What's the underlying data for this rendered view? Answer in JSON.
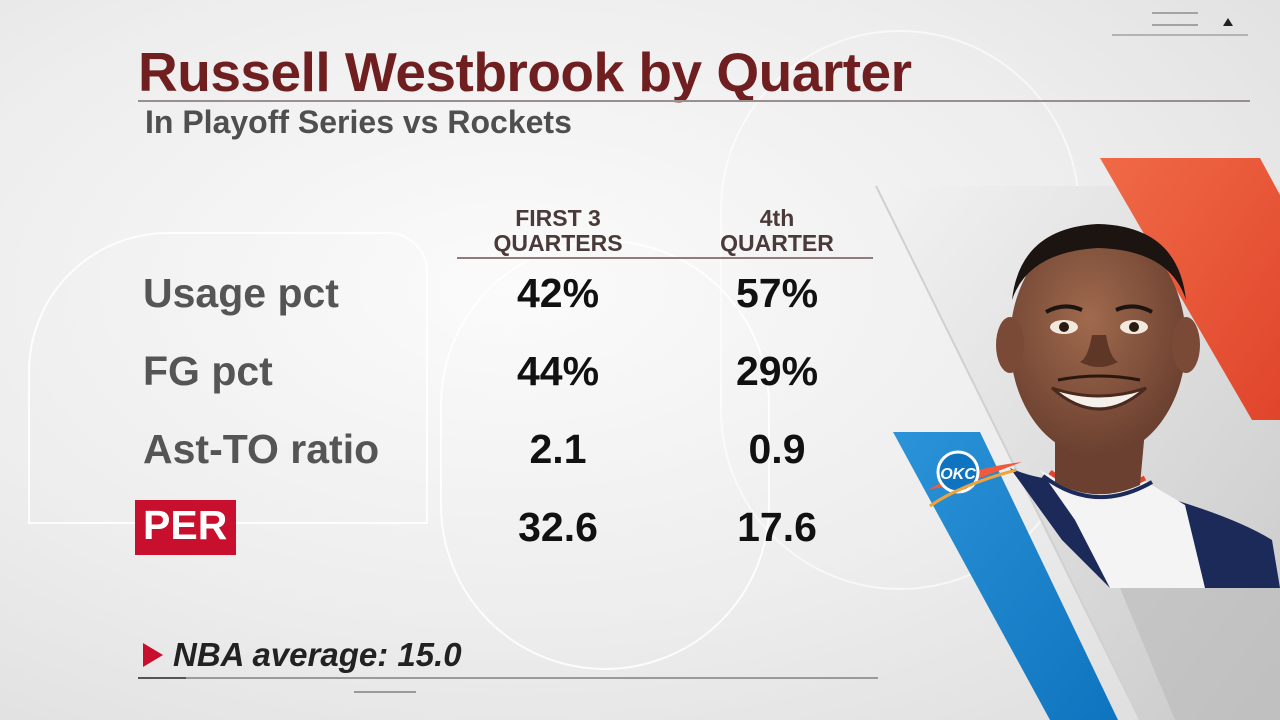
{
  "title": "Russell Westbrook by Quarter",
  "subtitle": "In Playoff Series vs Rockets",
  "columns": [
    "FIRST 3 QUARTERS",
    "4th QUARTER"
  ],
  "columns_lines": [
    [
      "FIRST 3",
      "QUARTERS"
    ],
    [
      "4th",
      "QUARTER"
    ]
  ],
  "rows": [
    {
      "label": "Usage pct",
      "first3": "42%",
      "fourth": "57%"
    },
    {
      "label": "FG pct",
      "first3": "44%",
      "fourth": "29%"
    },
    {
      "label": "Ast-TO ratio",
      "first3": "2.1",
      "fourth": "0.9"
    },
    {
      "label": "PER",
      "first3": "32.6",
      "fourth": "17.6",
      "highlighted": true
    }
  ],
  "footnote": "NBA average: 15.0",
  "logo": {
    "text": "OKC",
    "name": "okc-thunder-logo"
  },
  "colors": {
    "title": "#6f1f20",
    "accent_red": "#c8102e",
    "panel_blue": "#1a86d0",
    "panel_orange": "#ef5a3c"
  },
  "icons": {
    "ticker": "triangle-up-icon",
    "footnote": "play-arrow-icon"
  }
}
